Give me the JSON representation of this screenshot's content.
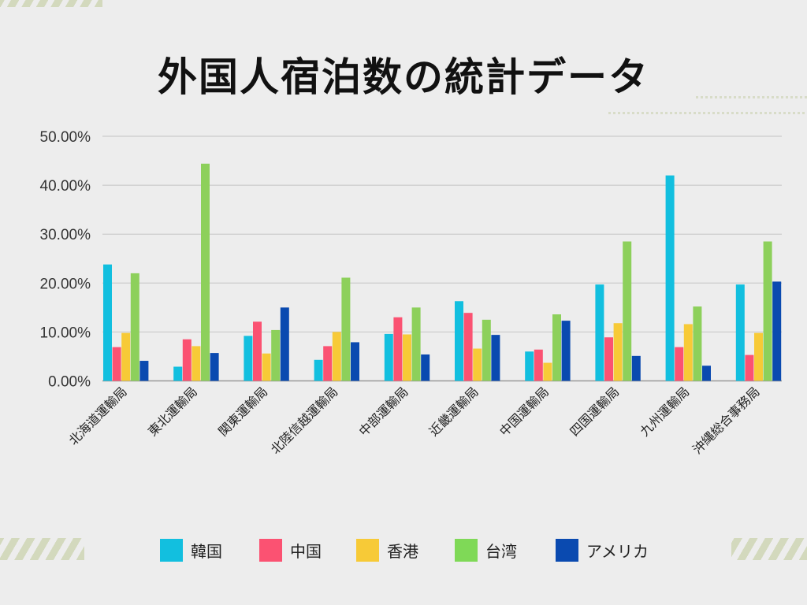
{
  "title": "外国人宿泊数の統計データ",
  "chart_data": {
    "type": "bar",
    "title": "外国人宿泊数の統計データ",
    "xlabel": "",
    "ylabel": "",
    "ylim": [
      0,
      50
    ],
    "yticks": [
      "0.00%",
      "10.00%",
      "20.00%",
      "30.00%",
      "40.00%",
      "50.00%"
    ],
    "ytick_values": [
      0,
      10,
      20,
      30,
      40,
      50
    ],
    "grid": true,
    "legend_position": "bottom",
    "categories": [
      "北海道運輸局",
      "東北運輸局",
      "関東運輸局",
      "北陸信越運輸局",
      "中部運輸局",
      "近畿運輸局",
      "中国運輸局",
      "四国運輸局",
      "九州運輸局",
      "沖縄総合事務局"
    ],
    "series": [
      {
        "name": "韓国",
        "color": "#12bfdf",
        "values": [
          23.8,
          2.9,
          9.2,
          4.3,
          9.6,
          16.3,
          6.0,
          19.7,
          42.0,
          19.7
        ]
      },
      {
        "name": "中国",
        "color": "#fb5272",
        "values": [
          6.9,
          8.5,
          12.1,
          7.1,
          13.0,
          13.9,
          6.4,
          8.9,
          6.9,
          5.3
        ]
      },
      {
        "name": "香港",
        "color": "#f7ca37",
        "values": [
          9.8,
          7.1,
          5.6,
          10.0,
          9.5,
          6.6,
          3.7,
          11.8,
          11.6,
          9.8
        ]
      },
      {
        "name": "台湾",
        "color": "#8dd05b",
        "values": [
          22.0,
          44.4,
          10.4,
          21.1,
          15.0,
          12.5,
          13.6,
          28.5,
          15.2,
          28.5
        ]
      },
      {
        "name": "アメリカ",
        "color": "#0a4ab0",
        "values": [
          4.1,
          5.7,
          15.0,
          7.9,
          5.4,
          9.4,
          12.3,
          5.1,
          3.1,
          20.3
        ]
      }
    ]
  },
  "legend": [
    {
      "label": "韓国",
      "color": "#12bfdf"
    },
    {
      "label": "中国",
      "color": "#fb5272"
    },
    {
      "label": "香港",
      "color": "#f7ca37"
    },
    {
      "label": "台湾",
      "color": "#7fd957"
    },
    {
      "label": "アメリカ",
      "color": "#0a4ab0"
    }
  ]
}
